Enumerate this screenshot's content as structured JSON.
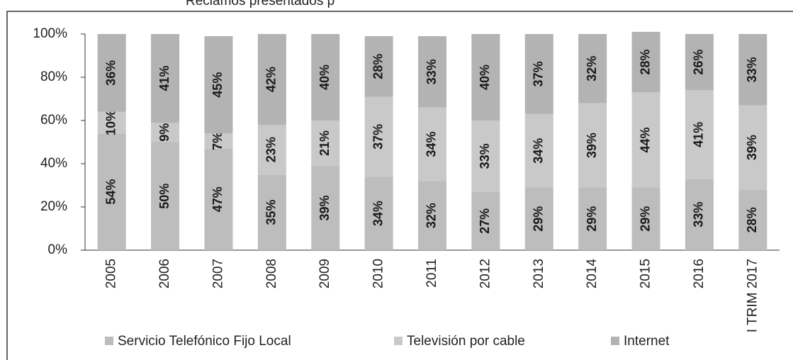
{
  "chart_data": {
    "type": "stacked_bar",
    "title": "Reclamos presentados p",
    "categories": [
      "2005",
      "2006",
      "2007",
      "2008",
      "2009",
      "2010",
      "2011",
      "2012",
      "2013",
      "2014",
      "2015",
      "2016",
      "I TRIM 2017"
    ],
    "series": [
      {
        "name": "Servicio Telefónico Fijo Local",
        "color": "#bdbdbd",
        "values": [
          54,
          50,
          47,
          35,
          39,
          34,
          32,
          27,
          29,
          29,
          29,
          33,
          28
        ],
        "value_labels": [
          "54%",
          "50%",
          "47%",
          "35%",
          "39%",
          "34%",
          "32%",
          "27%",
          "29%",
          "29%",
          "29%",
          "33%",
          "28%"
        ]
      },
      {
        "name": "Televisión por cable",
        "color": "#c9c9c9",
        "values": [
          10,
          9,
          7,
          23,
          21,
          37,
          34,
          33,
          34,
          39,
          44,
          41,
          39
        ],
        "value_labels": [
          "10%",
          "9%",
          "7%",
          "23%",
          "21%",
          "37%",
          "34%",
          "33%",
          "34%",
          "39%",
          "44%",
          "41%",
          "39%"
        ]
      },
      {
        "name": "Internet",
        "color": "#b3b3b3",
        "values": [
          36,
          41,
          45,
          42,
          40,
          28,
          33,
          40,
          37,
          32,
          28,
          26,
          33
        ],
        "value_labels": [
          "36%",
          "41%",
          "45%",
          "42%",
          "40%",
          "28%",
          "33%",
          "40%",
          "37%",
          "32%",
          "28%",
          "26%",
          "33%"
        ]
      }
    ],
    "ylim": [
      0,
      100
    ],
    "yticks": [
      {
        "value": 0,
        "label": "0%"
      },
      {
        "value": 20,
        "label": "20%"
      },
      {
        "value": 40,
        "label": "40%"
      },
      {
        "value": 60,
        "label": "60%"
      },
      {
        "value": 80,
        "label": "80%"
      },
      {
        "value": 100,
        "label": "100%"
      }
    ],
    "legend": "bottom"
  }
}
